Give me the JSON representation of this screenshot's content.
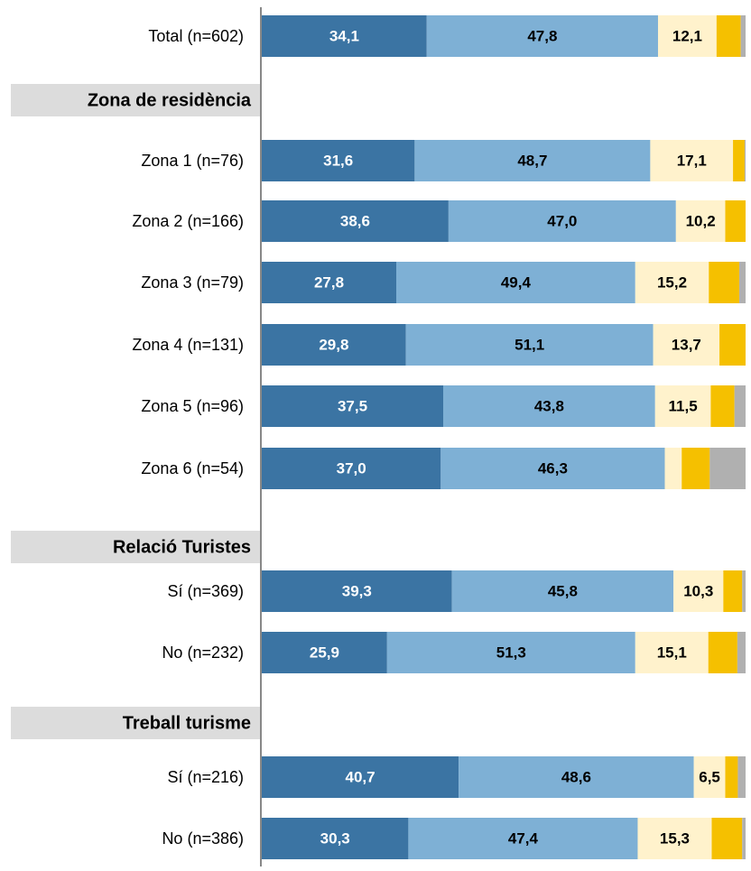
{
  "chart_data": {
    "type": "stacked-bar-horizontal",
    "categories": [
      "Total (n=602)",
      "Zona de residència",
      "Zona 1 (n=76)",
      "Zona 2 (n=166)",
      "Zona 3 (n=79)",
      "Zona 4 (n=131)",
      "Zona 5 (n=96)",
      "Zona 6 (n=54)",
      "Relació Turistes",
      "Sí (n=369)",
      "No (n=232)",
      "Treball turisme",
      "Sí (n=216)",
      "No (n=386)"
    ],
    "xlim": [
      0,
      100
    ],
    "series": [
      {
        "color": "#3b74a3",
        "values": [
          34.1,
          null,
          31.6,
          38.6,
          27.8,
          29.8,
          37.5,
          37.0,
          null,
          39.3,
          25.9,
          null,
          40.7,
          30.3
        ],
        "value_labels": [
          "34,1",
          null,
          "31,6",
          "38,6",
          "27,8",
          "29,8",
          "37,5",
          "37,0",
          null,
          "39,3",
          "25,9",
          null,
          "40,7",
          "30,3"
        ]
      },
      {
        "color": "#7eb0d5",
        "values": [
          47.8,
          null,
          48.7,
          47.0,
          49.4,
          51.1,
          43.8,
          46.3,
          null,
          45.8,
          51.3,
          null,
          48.6,
          47.4
        ],
        "value_labels": [
          "47,8",
          null,
          "48,7",
          "47,0",
          "49,4",
          "51,1",
          "43,8",
          "46,3",
          null,
          "45,8",
          "51,3",
          null,
          "48,6",
          "47,4"
        ]
      },
      {
        "color": "#fff2cc",
        "values": [
          12.1,
          null,
          17.1,
          10.2,
          15.2,
          13.7,
          11.5,
          3.5,
          null,
          10.3,
          15.1,
          null,
          6.5,
          15.3
        ],
        "value_labels": [
          "12,1",
          null,
          "17,1",
          "10,2",
          "15,2",
          "13,7",
          "11,5",
          null,
          null,
          "10,3",
          "15,1",
          null,
          "6,5",
          "15,3"
        ]
      },
      {
        "color": "#f5c000",
        "values": [
          5.0,
          null,
          2.4,
          4.2,
          6.3,
          5.4,
          4.9,
          5.8,
          null,
          3.9,
          6.0,
          null,
          2.6,
          6.3
        ]
      },
      {
        "color": "#b0b0b0",
        "values": [
          1.0,
          null,
          0.2,
          0.0,
          1.3,
          0.0,
          2.3,
          7.4,
          null,
          0.7,
          1.7,
          null,
          1.6,
          0.7
        ]
      }
    ]
  }
}
